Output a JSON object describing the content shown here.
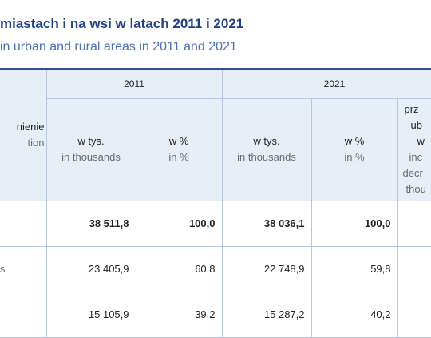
{
  "title": {
    "pl": "miastach i na wsi w latach 2011 i 2021",
    "en": "in urban and rural areas in 2011 and 2021"
  },
  "table": {
    "stub_header": {
      "pl": "nienie",
      "en": "tion"
    },
    "year_2011": "2011",
    "year_2021": "2021",
    "col_thousands": {
      "pl": "w tys.",
      "en": "in thousands"
    },
    "col_percent": {
      "pl": "w %",
      "en": "in %"
    },
    "col_change": {
      "l1": "prz",
      "l2": "ub",
      "l3": "w",
      "l4": "inc",
      "l5": "decr",
      "l6": "thou"
    },
    "rows": [
      {
        "label": "",
        "v2011_thousands": "38 511,8",
        "v2011_percent": "100,0",
        "v2021_thousands": "38 036,1",
        "v2021_percent": "100,0"
      },
      {
        "label": "s",
        "v2011_thousands": "23 405,9",
        "v2011_percent": "60,8",
        "v2021_thousands": "22 748,9",
        "v2021_percent": "59,8"
      },
      {
        "label": "",
        "v2011_thousands": "15 105,9",
        "v2011_percent": "39,2",
        "v2021_thousands": "15 287,2",
        "v2021_percent": "40,2"
      }
    ]
  }
}
